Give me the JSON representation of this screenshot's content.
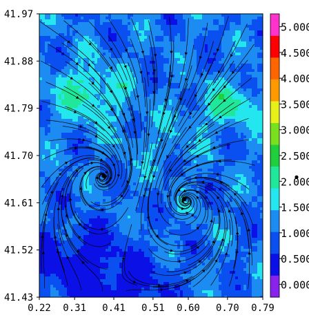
{
  "chart_data": {
    "type": "heatmap",
    "title": "",
    "xlabel": "",
    "ylabel": "",
    "xlim": [
      0.22,
      0.79
    ],
    "ylim": [
      41.43,
      41.97
    ],
    "x_ticks": [
      "0.22",
      "0.31",
      "0.41",
      "0.51",
      "0.60",
      "0.70",
      "0.79"
    ],
    "y_ticks": [
      "41.97",
      "41.88",
      "41.79",
      "41.70",
      "41.61",
      "41.52",
      "41.43"
    ],
    "colorbar": {
      "range": [
        -0.25,
        5.25
      ],
      "labels": [
        "0.000",
        "0.500",
        "1.000",
        "1.500",
        "2.000",
        "2.500",
        "3.000",
        "3.500",
        "4.000",
        "4.500",
        "5.000"
      ],
      "label_values": [
        0,
        0.5,
        1,
        1.5,
        2,
        2.5,
        3,
        3.5,
        4,
        4.5,
        5
      ],
      "colors": [
        "#8a22ee",
        "#0a10e6",
        "#0a50f0",
        "#1c8cf2",
        "#24e6ef",
        "#1fe89a",
        "#1fcf3c",
        "#7adf1c",
        "#e8f019",
        "#ff9900",
        "#ff6600",
        "#ff0000",
        "#ff33cc"
      ],
      "marker_value": 2.08
    },
    "field_range": [
      0.3,
      2.6
    ],
    "centers": [
      {
        "x": 0.385,
        "y": 41.661
      },
      {
        "x": 0.59,
        "y": 41.617
      }
    ],
    "streamlines": true
  }
}
